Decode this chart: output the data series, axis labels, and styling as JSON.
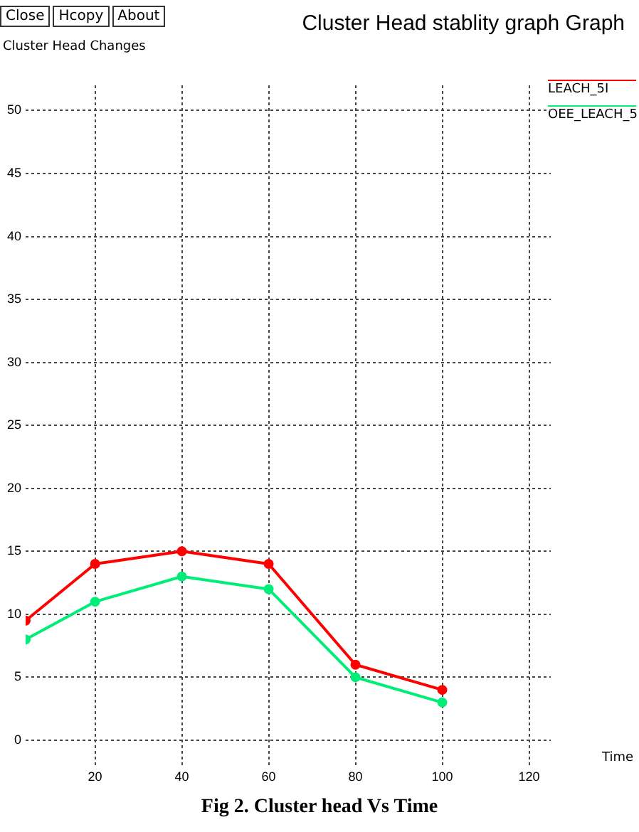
{
  "chart_data": {
    "type": "line",
    "title": "Cluster Head stablity graph Graph",
    "xlabel": "Time",
    "ylabel": "Cluster Head Changes",
    "annotations": [
      "Close",
      "Hcopy",
      "About",
      "Fig 2. Cluster head Vs Time"
    ],
    "x": [
      4,
      20,
      40,
      60,
      80,
      100
    ],
    "series": [
      {
        "name": "LEACH_5I",
        "color": "#ff0000",
        "values": [
          9.5,
          14,
          15,
          14,
          6,
          4
        ]
      },
      {
        "name": "OEE_LEACH_5",
        "color": "#00ee77",
        "values": [
          8,
          11,
          13,
          12,
          5,
          3
        ]
      }
    ],
    "xlim": [
      4,
      125
    ],
    "ylim": [
      -2,
      52
    ],
    "xticks": [
      20,
      40,
      60,
      80,
      100,
      120
    ],
    "yticks": [
      0,
      5,
      10,
      15,
      20,
      25,
      30,
      35,
      40,
      45,
      50
    ],
    "grid": true,
    "legend": "top right",
    "marker": "circle",
    "line_style": "solid"
  }
}
